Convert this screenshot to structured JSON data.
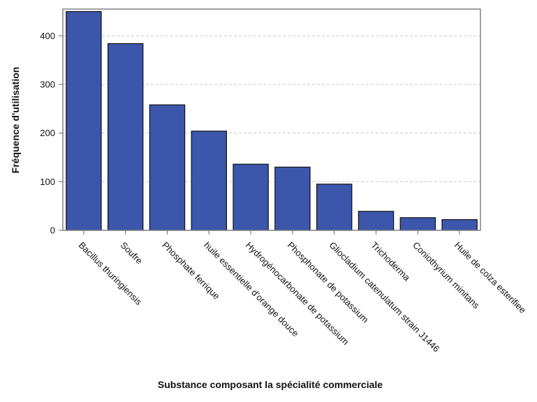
{
  "chart_data": {
    "type": "bar",
    "title": "",
    "xlabel": "Substance composant la spécialité commerciale",
    "ylabel": "Fréquence d'utilisation",
    "categories": [
      "Bacillus thuringiensis",
      "Soufre",
      "Phosphate ferrique",
      "huile essentielle d'orange douce",
      "Hydrogénocarbonate de potassium",
      "Phosphonate de potassium",
      "Gliocladium catenulatum strain J1446",
      "Trichoderma",
      "Coniothyrium minitans",
      "Huile de colza esterifiee"
    ],
    "values": [
      450,
      384,
      258,
      204,
      136,
      130,
      95,
      39,
      26,
      22
    ],
    "ylim": [
      0,
      455
    ],
    "yticks": [
      0,
      100,
      200,
      300,
      400
    ],
    "grid": "horizontal dashed",
    "colors": {
      "bar": "#3b56ab",
      "bar_edge": "#111111",
      "grid": "#c8c8c8",
      "frame": "#808080"
    }
  }
}
